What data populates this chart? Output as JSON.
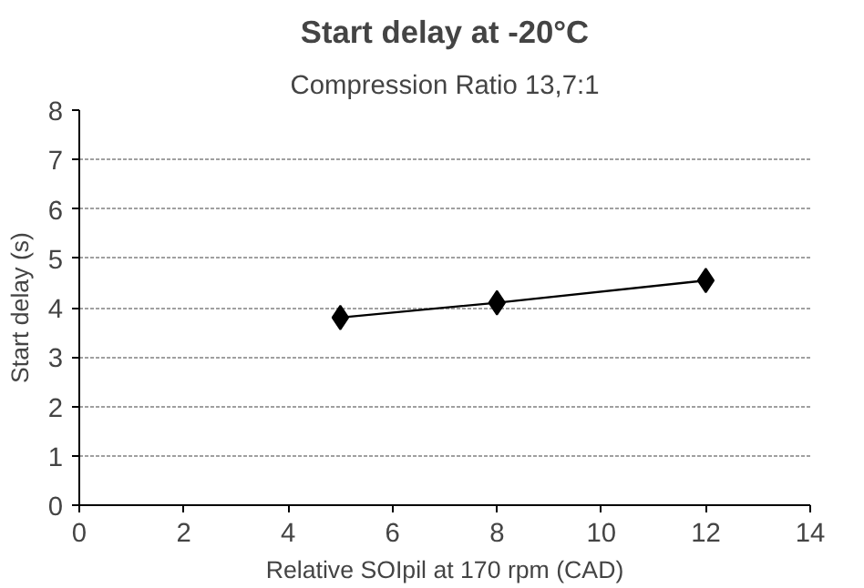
{
  "chart_data": {
    "type": "line",
    "title": "Start delay at -20°C",
    "subtitle": "Compression Ratio 13,7:1",
    "xlabel": "Relative SOIpil at 170 rpm (CAD)",
    "ylabel": "Start delay (s)",
    "x": [
      5,
      8,
      12
    ],
    "series": [
      {
        "color": "#000000",
        "values": [
          3.8,
          4.1,
          4.55
        ]
      }
    ],
    "xlim": [
      0,
      14
    ],
    "xticks": [
      0,
      2,
      4,
      6,
      8,
      10,
      12,
      14
    ],
    "ylim": [
      0,
      8
    ],
    "yticks": [
      0,
      1,
      2,
      3,
      4,
      5,
      6,
      7,
      8
    ],
    "grid": "y",
    "marker": "diamond",
    "line_style": "solid"
  }
}
